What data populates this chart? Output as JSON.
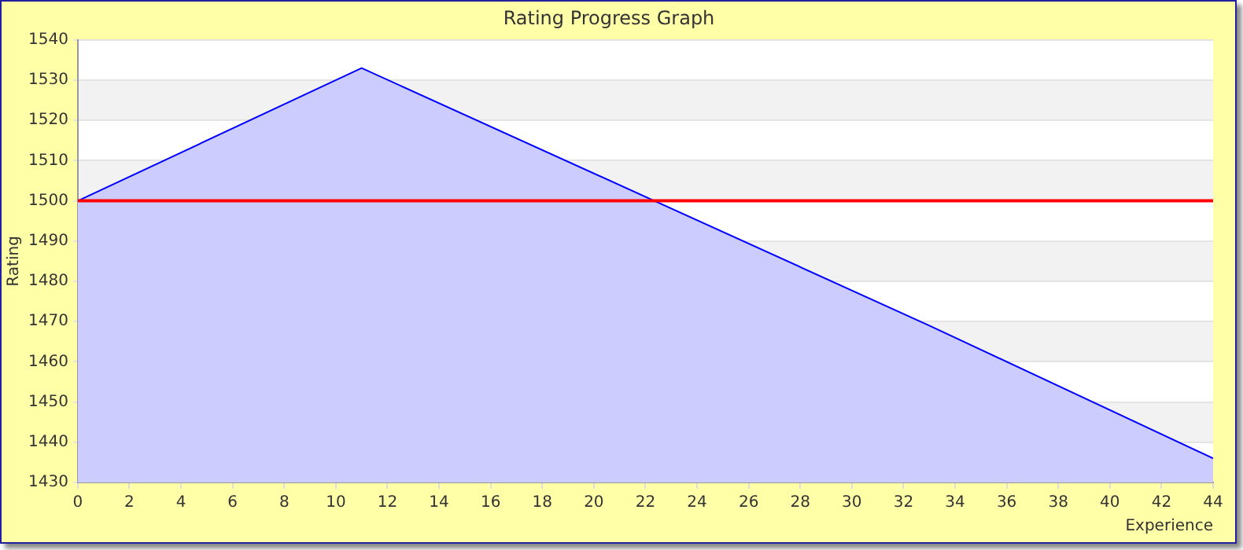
{
  "chart_data": {
    "type": "area",
    "title": "Rating Progress Graph",
    "xlabel": "Experience",
    "ylabel": "Rating",
    "x": [
      0,
      11,
      33,
      44
    ],
    "series": [
      {
        "color": "#0000ff",
        "values": [
          1500,
          1533,
          1469,
          1436
        ]
      }
    ],
    "xlim": [
      0,
      44
    ],
    "xticks": [
      0,
      2,
      4,
      6,
      8,
      10,
      12,
      14,
      16,
      18,
      20,
      22,
      24,
      26,
      28,
      30,
      32,
      34,
      36,
      38,
      40,
      42,
      44
    ],
    "ylim": [
      1430,
      1540
    ],
    "yticks": [
      1430,
      1440,
      1450,
      1460,
      1470,
      1480,
      1490,
      1500,
      1510,
      1520,
      1530,
      1540
    ],
    "grid": "y",
    "legend": false,
    "marker": "none",
    "ref_lines": [
      {
        "axis": "y",
        "value": 1500,
        "color": "#ff0000"
      }
    ]
  }
}
